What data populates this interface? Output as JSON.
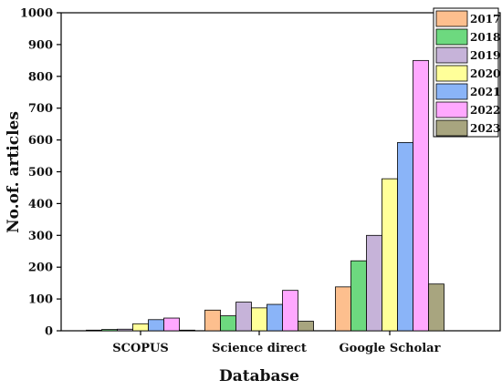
{
  "chart_data": {
    "type": "bar",
    "xlabel": "Database",
    "ylabel": "No.of. articles",
    "ylim": [
      0,
      1000
    ],
    "yticks": [
      0,
      100,
      200,
      300,
      400,
      500,
      600,
      700,
      800,
      900,
      1000
    ],
    "categories": [
      "SCOPUS",
      "Science direct",
      "Google Scholar"
    ],
    "legend_position": "top-right",
    "grid": false,
    "series": [
      {
        "name": "2017",
        "color": "#FDBF8E",
        "values": [
          2,
          65,
          138
        ]
      },
      {
        "name": "2018",
        "color": "#6DD97F",
        "values": [
          4,
          47,
          220
        ]
      },
      {
        "name": "2019",
        "color": "#C6B3D9",
        "values": [
          5,
          90,
          300
        ]
      },
      {
        "name": "2020",
        "color": "#FFFF99",
        "values": [
          22,
          72,
          478
        ]
      },
      {
        "name": "2021",
        "color": "#8AB4F8",
        "values": [
          35,
          83,
          592
        ]
      },
      {
        "name": "2022",
        "color": "#FFA8FF",
        "values": [
          40,
          127,
          850
        ]
      },
      {
        "name": "2023",
        "color": "#A8A57F",
        "values": [
          2,
          30,
          147
        ]
      }
    ]
  }
}
